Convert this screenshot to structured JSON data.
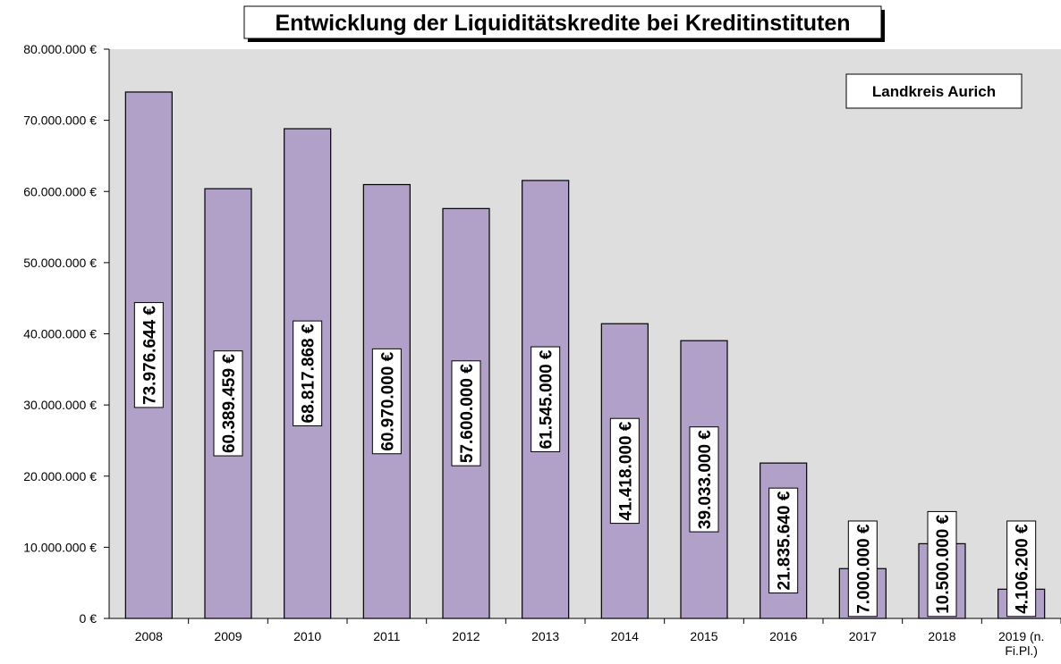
{
  "chart_data": {
    "type": "bar",
    "title": "Entwicklung der Liquiditätskredite bei Kreditinstituten",
    "annotation": "Landkreis Aurich",
    "categories": [
      "2008",
      "2009",
      "2010",
      "2011",
      "2012",
      "2013",
      "2014",
      "2015",
      "2016",
      "2017",
      "2018",
      "2019 (n. Fi.Pl.)"
    ],
    "values": [
      73976644,
      60389459,
      68817868,
      60970000,
      57600000,
      61545000,
      41418000,
      39033000,
      21835640,
      7000000,
      10500000,
      4106200
    ],
    "value_labels": [
      "73.976.644 €",
      "60.389.459 €",
      "68.817.868 €",
      "60.970.000 €",
      "57.600.000 €",
      "61.545.000 €",
      "41.418.000 €",
      "39.033.000 €",
      "21.835.640 €",
      "7.000.000 €",
      "10.500.000 €",
      "4.106.200 €"
    ],
    "color": "#b1a1c9",
    "ylim": [
      0,
      80000000
    ],
    "yticks": [
      {
        "value": 0,
        "label": "0 €"
      },
      {
        "value": 10000000,
        "label": "10.000.000 €"
      },
      {
        "value": 20000000,
        "label": "20.000.000 €"
      },
      {
        "value": 30000000,
        "label": "30.000.000 €"
      },
      {
        "value": 40000000,
        "label": "40.000.000 €"
      },
      {
        "value": 50000000,
        "label": "50.000.000 €"
      },
      {
        "value": 60000000,
        "label": "60.000.000 €"
      },
      {
        "value": 70000000,
        "label": "70.000.000 €"
      },
      {
        "value": 80000000,
        "label": "80.000.000 €"
      }
    ]
  }
}
